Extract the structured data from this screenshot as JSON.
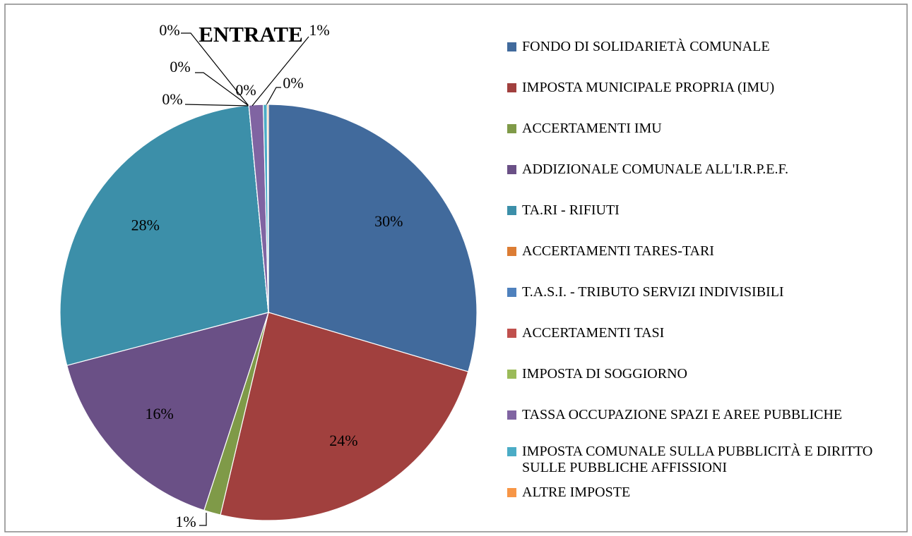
{
  "chart_data": {
    "type": "pie",
    "title": "ENTRATE",
    "categories": [
      "FONDO DI SOLIDARIETÀ COMUNALE",
      "IMPOSTA MUNICIPALE PROPRIA (IMU)",
      "ACCERTAMENTI IMU",
      "ADDIZIONALE COMUNALE ALL'I.R.P.E.F.",
      "TA.RI - RIFIUTI",
      "ACCERTAMENTI TARES-TARI",
      "T.A.S.I. - TRIBUTO SERVIZI INDIVISIBILI",
      "ACCERTAMENTI TASI",
      "IMPOSTA DI SOGGIORNO",
      "TASSA OCCUPAZIONE SPAZI E AREE PUBBLICHE",
      "IMPOSTA COMUNALE SULLA PUBBLICITÀ E DIRITTO SULLE PUBBLICHE AFFISSIONI",
      "ALTRE IMPOSTE"
    ],
    "values": [
      29.6,
      24.1,
      1.3,
      15.9,
      27.6,
      0.0,
      0.0,
      0.0,
      0.0,
      1.1,
      0.3,
      0.1
    ],
    "value_labels": [
      "30%",
      "24%",
      "1%",
      "16%",
      "28%",
      "0%",
      "0%",
      "0%",
      "0%",
      "1%",
      "0%",
      null
    ],
    "colors": [
      "#416a9c",
      "#a1403e",
      "#7f9a48",
      "#6a5086",
      "#3c8fa9",
      "#dc7d34",
      "#4f81bd",
      "#c0504d",
      "#9bbb59",
      "#8064a2",
      "#4bacc6",
      "#f79646"
    ],
    "legend": "right"
  }
}
